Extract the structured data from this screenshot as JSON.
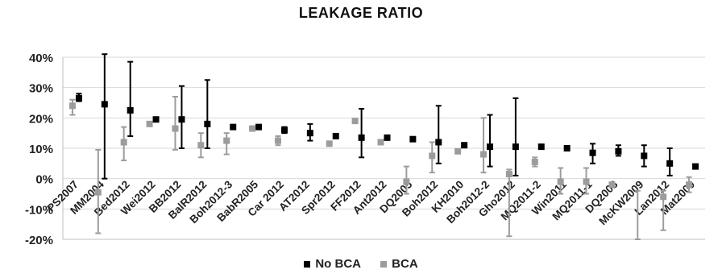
{
  "chart_data": {
    "type": "scatter",
    "title": "LEAKAGE RATIO",
    "xlabel": "",
    "ylabel": "",
    "ylim": [
      -20,
      40
    ],
    "yticks": [
      -20,
      -10,
      0,
      10,
      20,
      30,
      40
    ],
    "ytick_suffix": "%",
    "grid": true,
    "legend_position": "bottom",
    "categories": [
      "PS2007",
      "MM2004",
      "Bed2012",
      "Wei2012",
      "BB2012",
      "BalR2012",
      "Boh2012-3",
      "BabR2005",
      "Car 2012",
      "AT2012",
      "Spr2012",
      "FF2012",
      "Ant2012",
      "DQ2005",
      "Boh2012",
      "KH2010",
      "Boh2012-2",
      "Gho2012",
      "MQ2011-2",
      "Win2011",
      "MQ2011-1",
      "DQ2008",
      "McKW2009",
      "Lan2012",
      "Mat2009"
    ],
    "series": [
      {
        "name": "No BCA",
        "color": "#000000",
        "values": [
          26.5,
          24.5,
          22.5,
          19.5,
          19.5,
          18,
          17,
          17,
          16,
          15,
          14,
          13.5,
          13.5,
          13,
          12,
          11,
          10.5,
          10.5,
          10.5,
          10,
          8.5,
          9,
          7.5,
          5,
          4
        ],
        "err_low": [
          25.5,
          0,
          14,
          null,
          10,
          10,
          null,
          null,
          15,
          12.5,
          null,
          7,
          null,
          null,
          5,
          null,
          4,
          1,
          null,
          null,
          5,
          7.5,
          4,
          1,
          null
        ],
        "err_high": [
          28,
          41,
          38.5,
          null,
          30.5,
          32.5,
          null,
          null,
          17,
          18,
          null,
          23,
          null,
          null,
          24,
          null,
          21,
          26.5,
          null,
          null,
          11.5,
          11,
          11,
          10,
          null
        ]
      },
      {
        "name": "BCA",
        "color": "#9c9c9c",
        "values": [
          24,
          -4.5,
          12,
          18,
          16.5,
          11,
          12.5,
          16.5,
          12.5,
          null,
          11.5,
          19,
          12,
          -1,
          7.5,
          9,
          8,
          1.5,
          5.5,
          -1,
          -1,
          -2,
          null,
          -6,
          -2
        ],
        "err_low": [
          21,
          -18,
          6,
          null,
          9.5,
          7,
          8,
          null,
          11,
          null,
          null,
          null,
          null,
          -5,
          2,
          null,
          2,
          -19,
          4,
          -5,
          -5,
          null,
          -20,
          -17,
          -4.5
        ],
        "err_high": [
          26,
          9.5,
          17,
          null,
          27,
          15,
          15,
          null,
          14,
          null,
          null,
          null,
          null,
          4,
          12,
          null,
          20,
          3,
          7,
          3.5,
          3.5,
          null,
          -4,
          -4,
          0.5
        ]
      }
    ]
  }
}
